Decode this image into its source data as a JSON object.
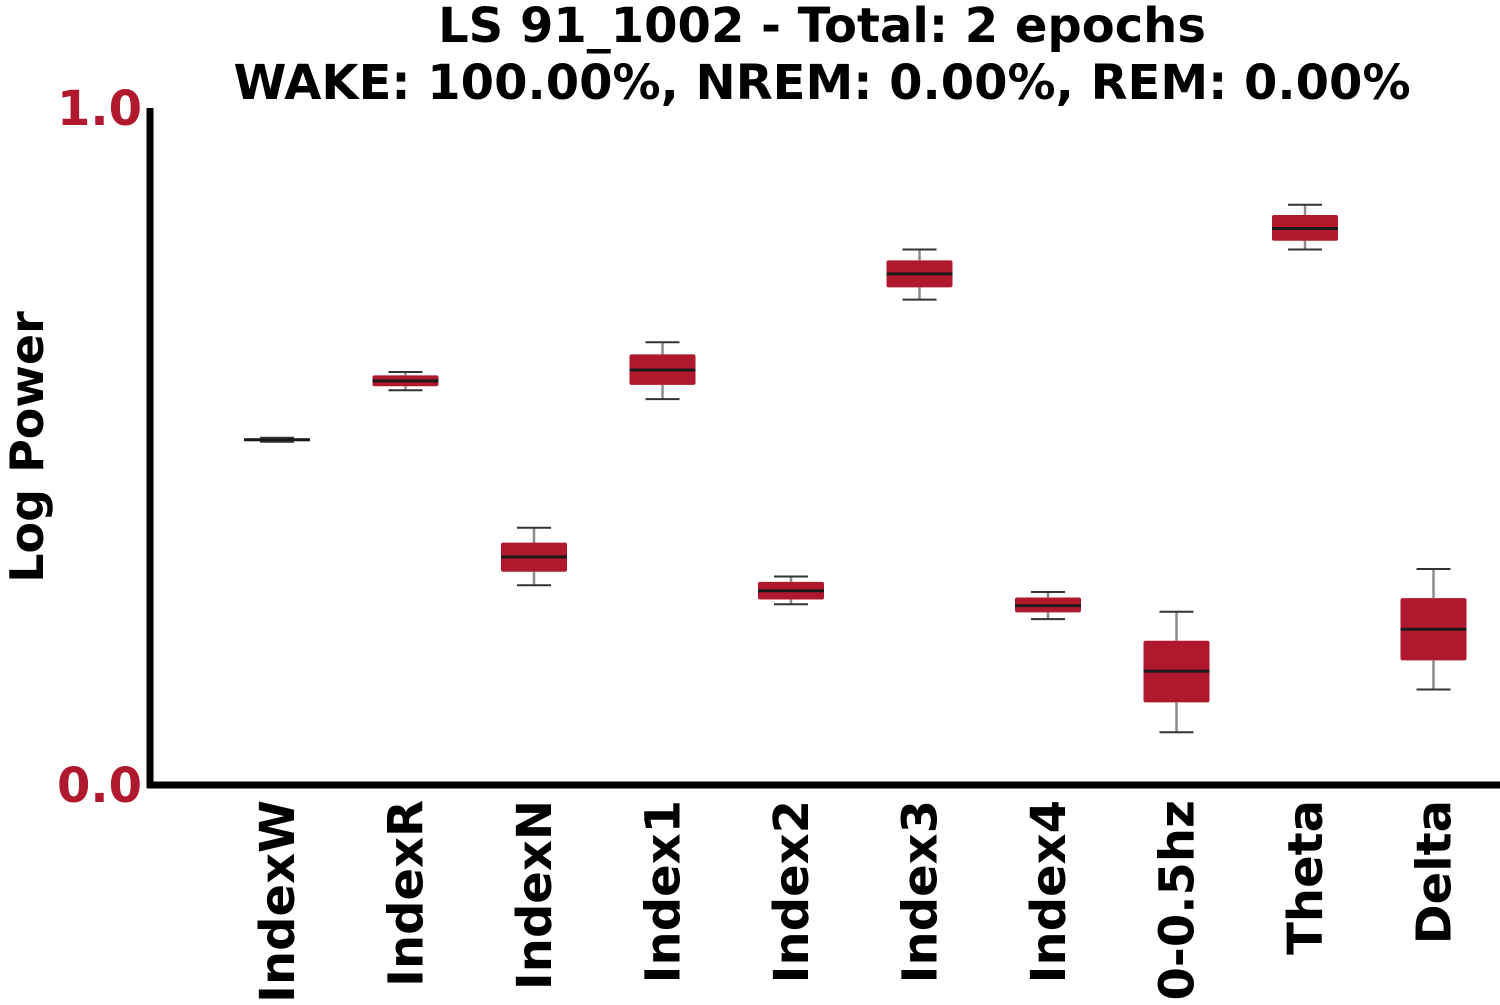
{
  "chart_data": {
    "type": "box",
    "title": "LS 91_1002 - Total: 2 epochs",
    "subtitle": "WAKE: 100.00%, NREM: 0.00%, REM: 0.00%",
    "xlabel": "",
    "ylabel": "Log Power",
    "ylim": [
      0.0,
      1.0
    ],
    "yticks": [
      "0.0",
      "1.0"
    ],
    "grid": false,
    "legend": "none",
    "categories": [
      "IndexW",
      "IndexR",
      "IndexN",
      "Index1",
      "Index2",
      "Index3",
      "Index4",
      "0-0.5hz",
      "Theta",
      "Delta"
    ],
    "boxes": [
      {
        "min": 0.507,
        "q1": 0.508,
        "median": 0.51,
        "q3": 0.512,
        "max": 0.513
      },
      {
        "min": 0.583,
        "q1": 0.589,
        "median": 0.597,
        "q3": 0.605,
        "max": 0.61
      },
      {
        "min": 0.295,
        "q1": 0.315,
        "median": 0.337,
        "q3": 0.358,
        "max": 0.38
      },
      {
        "min": 0.57,
        "q1": 0.591,
        "median": 0.613,
        "q3": 0.636,
        "max": 0.654
      },
      {
        "min": 0.267,
        "q1": 0.274,
        "median": 0.287,
        "q3": 0.3,
        "max": 0.308
      },
      {
        "min": 0.717,
        "q1": 0.735,
        "median": 0.755,
        "q3": 0.775,
        "max": 0.791
      },
      {
        "min": 0.245,
        "q1": 0.255,
        "median": 0.265,
        "q3": 0.277,
        "max": 0.285
      },
      {
        "min": 0.078,
        "q1": 0.122,
        "median": 0.168,
        "q3": 0.213,
        "max": 0.256
      },
      {
        "min": 0.791,
        "q1": 0.804,
        "median": 0.822,
        "q3": 0.842,
        "max": 0.857
      },
      {
        "min": 0.141,
        "q1": 0.184,
        "median": 0.23,
        "q3": 0.276,
        "max": 0.319
      }
    ],
    "colors": {
      "box_fill": "#b0182d",
      "median_line": "#1a1a1a",
      "whisker": "#8c8c8c",
      "cap": "#333333",
      "axis": "#000000",
      "ytick_text": "#b0182d"
    }
  }
}
